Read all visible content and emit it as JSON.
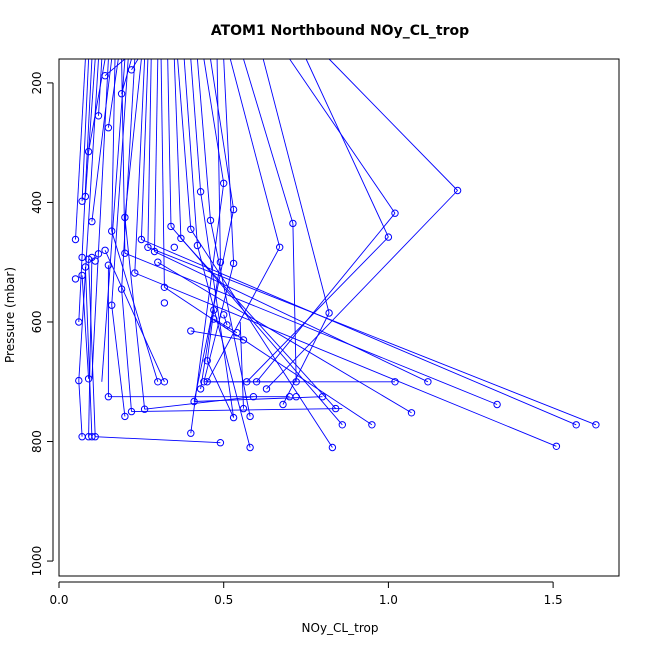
{
  "chart_data": {
    "type": "line",
    "title": "ATOM1 Northbound NOy_CL_trop",
    "xlabel": "NOy_CL_trop",
    "ylabel": "Pressure (mbar)",
    "xlim": [
      0,
      1.7
    ],
    "ylim": [
      1025,
      160
    ],
    "y_reversed": true,
    "x_ticks": [
      0.0,
      0.5,
      1.0,
      1.5
    ],
    "x_tick_labels": [
      "0.0",
      "0.5",
      "1.0",
      "1.5"
    ],
    "y_ticks": [
      200,
      400,
      600,
      800,
      1000
    ],
    "y_tick_labels": [
      "200",
      "400",
      "600",
      "800",
      "1000"
    ],
    "grid": false,
    "series_color": "#0000ff",
    "marker": "open-circle",
    "points": [
      [
        0.05,
        462
      ],
      [
        0.06,
        698
      ],
      [
        0.07,
        792
      ],
      [
        0.07,
        398
      ],
      [
        0.08,
        390
      ],
      [
        0.06,
        600
      ],
      [
        0.05,
        528
      ],
      [
        0.07,
        522
      ],
      [
        0.08,
        508
      ],
      [
        0.09,
        495
      ],
      [
        0.07,
        492
      ],
      [
        0.1,
        492
      ],
      [
        0.11,
        498
      ],
      [
        0.12,
        486
      ],
      [
        0.14,
        480
      ],
      [
        0.15,
        505
      ],
      [
        0.09,
        695
      ],
      [
        0.1,
        792
      ],
      [
        0.09,
        792
      ],
      [
        0.11,
        792
      ],
      [
        0.09,
        315
      ],
      [
        0.1,
        432
      ],
      [
        0.12,
        255
      ],
      [
        0.15,
        275
      ],
      [
        0.14,
        188
      ],
      [
        0.19,
        218
      ],
      [
        0.22,
        178
      ],
      [
        0.16,
        448
      ],
      [
        0.16,
        572
      ],
      [
        0.19,
        545
      ],
      [
        0.2,
        485
      ],
      [
        0.2,
        425
      ],
      [
        0.23,
        518
      ],
      [
        0.25,
        462
      ],
      [
        0.27,
        475
      ],
      [
        0.29,
        482
      ],
      [
        0.3,
        500
      ],
      [
        0.32,
        542
      ],
      [
        0.32,
        568
      ],
      [
        0.34,
        440
      ],
      [
        0.35,
        475
      ],
      [
        0.37,
        460
      ],
      [
        0.4,
        445
      ],
      [
        0.42,
        472
      ],
      [
        0.43,
        382
      ],
      [
        0.46,
        430
      ],
      [
        0.5,
        368
      ],
      [
        0.53,
        412
      ],
      [
        0.49,
        500
      ],
      [
        0.53,
        502
      ],
      [
        0.47,
        580
      ],
      [
        0.47,
        595
      ],
      [
        0.5,
        588
      ],
      [
        0.51,
        605
      ],
      [
        0.54,
        618
      ],
      [
        0.56,
        630
      ],
      [
        0.4,
        615
      ],
      [
        0.45,
        665
      ],
      [
        0.44,
        700
      ],
      [
        0.45,
        700
      ],
      [
        0.43,
        712
      ],
      [
        0.41,
        733
      ],
      [
        0.4,
        786
      ],
      [
        0.49,
        802
      ],
      [
        0.58,
        810
      ],
      [
        0.53,
        760
      ],
      [
        0.58,
        758
      ],
      [
        0.56,
        745
      ],
      [
        0.57,
        700
      ],
      [
        0.6,
        700
      ],
      [
        0.63,
        712
      ],
      [
        0.59,
        725
      ],
      [
        0.68,
        738
      ],
      [
        0.7,
        725
      ],
      [
        0.72,
        725
      ],
      [
        0.8,
        725
      ],
      [
        0.84,
        745
      ],
      [
        0.86,
        772
      ],
      [
        0.83,
        810
      ],
      [
        0.82,
        585
      ],
      [
        0.67,
        475
      ],
      [
        0.71,
        435
      ],
      [
        0.72,
        700
      ],
      [
        0.95,
        772
      ],
      [
        1.0,
        458
      ],
      [
        1.02,
        418
      ],
      [
        1.02,
        700
      ],
      [
        1.12,
        700
      ],
      [
        1.07,
        752
      ],
      [
        1.21,
        380
      ],
      [
        1.33,
        738
      ],
      [
        1.51,
        808
      ],
      [
        1.57,
        772
      ],
      [
        1.63,
        772
      ],
      [
        0.15,
        725
      ],
      [
        0.2,
        758
      ],
      [
        0.22,
        750
      ],
      [
        0.26,
        746
      ],
      [
        0.3,
        700
      ],
      [
        0.32,
        700
      ]
    ],
    "segments": [
      [
        0.08,
        160,
        0.05,
        462
      ],
      [
        0.1,
        160,
        0.06,
        600
      ],
      [
        0.12,
        160,
        0.06,
        698
      ],
      [
        0.09,
        160,
        0.07,
        398
      ],
      [
        0.11,
        160,
        0.08,
        390
      ],
      [
        0.14,
        160,
        0.09,
        315
      ],
      [
        0.16,
        160,
        0.1,
        432
      ],
      [
        0.13,
        160,
        0.12,
        255
      ],
      [
        0.18,
        160,
        0.15,
        275
      ],
      [
        0.2,
        160,
        0.14,
        188
      ],
      [
        0.22,
        160,
        0.19,
        218
      ],
      [
        0.24,
        160,
        0.22,
        178
      ],
      [
        0.17,
        160,
        0.16,
        448
      ],
      [
        0.21,
        160,
        0.16,
        572
      ],
      [
        0.23,
        160,
        0.19,
        545
      ],
      [
        0.25,
        160,
        0.2,
        425
      ],
      [
        0.19,
        160,
        0.2,
        485
      ],
      [
        0.26,
        160,
        0.23,
        518
      ],
      [
        0.27,
        160,
        0.25,
        462
      ],
      [
        0.28,
        160,
        0.27,
        475
      ],
      [
        0.3,
        160,
        0.29,
        482
      ],
      [
        0.31,
        160,
        0.32,
        542
      ],
      [
        0.33,
        160,
        0.34,
        440
      ],
      [
        0.35,
        160,
        0.37,
        460
      ],
      [
        0.36,
        160,
        0.4,
        445
      ],
      [
        0.38,
        160,
        0.42,
        472
      ],
      [
        0.4,
        160,
        0.43,
        382
      ],
      [
        0.42,
        160,
        0.46,
        430
      ],
      [
        0.44,
        160,
        0.5,
        368
      ],
      [
        0.46,
        160,
        0.53,
        412
      ],
      [
        0.48,
        160,
        0.49,
        500
      ],
      [
        0.5,
        160,
        0.53,
        502
      ],
      [
        0.52,
        160,
        0.67,
        475
      ],
      [
        0.56,
        160,
        0.71,
        435
      ],
      [
        0.62,
        160,
        0.82,
        585
      ],
      [
        0.7,
        160,
        1.02,
        418
      ],
      [
        0.75,
        160,
        1.0,
        458
      ],
      [
        0.82,
        160,
        1.21,
        380
      ],
      [
        0.2,
        160,
        0.13,
        700
      ],
      [
        0.15,
        160,
        0.1,
        695
      ],
      [
        0.06,
        698,
        0.07,
        792
      ],
      [
        0.07,
        522,
        0.09,
        695
      ],
      [
        0.08,
        508,
        0.1,
        792
      ],
      [
        0.09,
        495,
        0.11,
        792
      ],
      [
        0.1,
        492,
        0.09,
        792
      ],
      [
        0.11,
        792,
        0.49,
        802
      ],
      [
        0.2,
        485,
        1.33,
        738
      ],
      [
        0.23,
        518,
        1.51,
        808
      ],
      [
        0.25,
        462,
        1.57,
        772
      ],
      [
        0.27,
        475,
        1.63,
        772
      ],
      [
        0.29,
        482,
        1.12,
        700
      ],
      [
        0.3,
        500,
        1.07,
        752
      ],
      [
        0.32,
        542,
        0.95,
        772
      ],
      [
        0.34,
        440,
        0.86,
        772
      ],
      [
        0.37,
        460,
        0.84,
        745
      ],
      [
        0.4,
        445,
        0.83,
        810
      ],
      [
        0.42,
        472,
        0.58,
        810
      ],
      [
        0.43,
        382,
        0.53,
        760
      ],
      [
        0.46,
        430,
        0.58,
        758
      ],
      [
        0.5,
        368,
        0.4,
        786
      ],
      [
        0.53,
        412,
        0.41,
        733
      ],
      [
        0.49,
        500,
        0.43,
        712
      ],
      [
        0.53,
        502,
        0.44,
        700
      ],
      [
        0.47,
        580,
        0.45,
        665
      ],
      [
        0.71,
        435,
        0.72,
        700
      ],
      [
        0.67,
        475,
        0.45,
        700
      ],
      [
        0.82,
        585,
        0.68,
        738
      ],
      [
        1.02,
        418,
        0.6,
        700
      ],
      [
        1.0,
        458,
        0.57,
        700
      ],
      [
        1.21,
        380,
        0.63,
        712
      ],
      [
        0.44,
        700,
        1.02,
        700
      ],
      [
        0.45,
        700,
        0.72,
        700
      ],
      [
        0.41,
        733,
        0.8,
        725
      ],
      [
        0.15,
        725,
        0.7,
        725
      ],
      [
        0.22,
        750,
        0.86,
        745
      ],
      [
        0.26,
        746,
        0.59,
        725
      ],
      [
        0.16,
        572,
        0.2,
        758
      ],
      [
        0.19,
        545,
        0.22,
        750
      ],
      [
        0.2,
        425,
        0.26,
        746
      ],
      [
        0.16,
        448,
        0.3,
        700
      ],
      [
        0.14,
        480,
        0.32,
        700
      ],
      [
        0.15,
        505,
        0.15,
        725
      ],
      [
        0.4,
        615,
        0.56,
        630
      ],
      [
        0.47,
        595,
        0.54,
        618
      ],
      [
        0.5,
        588,
        0.51,
        605
      ],
      [
        0.55,
        600,
        0.56,
        745
      ],
      [
        0.45,
        665,
        0.53,
        760
      ]
    ]
  }
}
